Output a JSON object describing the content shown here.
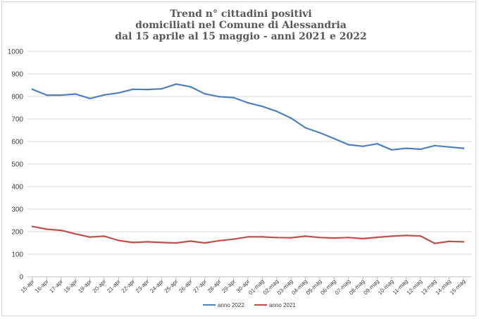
{
  "chart_data": {
    "type": "line",
    "title": [
      "Trend n° cittadini positivi",
      "domiciliati nel Comune di Alessandria",
      "dal 15 aprile al 15 maggio - anni 2021 e 2022"
    ],
    "xlabel": "",
    "ylabel": "",
    "ylim": [
      0,
      1000
    ],
    "yticks": [
      0,
      100,
      200,
      300,
      400,
      500,
      600,
      700,
      800,
      900,
      1000
    ],
    "grid": true,
    "legend_position": "bottom",
    "categories": [
      "15-apr",
      "16-apr",
      "17-apr",
      "18-apr",
      "19-apr",
      "20-apr",
      "21-apr",
      "22-apr",
      "23-apr",
      "24-apr",
      "25-apr",
      "26-apr",
      "27-apr",
      "28-apr",
      "29-apr",
      "30-apr",
      "01-mag",
      "02-mag",
      "03-mag",
      "04-mag",
      "05-mag",
      "06-mag",
      "07-mag",
      "08-mag",
      "09-mag",
      "10-mag",
      "11-mag",
      "12-mag",
      "13-mag",
      "14-mag",
      "15-mag"
    ],
    "series": [
      {
        "name": "anno 2022",
        "color": "#4f81bd",
        "values": [
          832,
          806,
          806,
          811,
          791,
          807,
          816,
          832,
          831,
          834,
          855,
          843,
          812,
          799,
          795,
          772,
          756,
          734,
          704,
          661,
          639,
          613,
          586,
          579,
          590,
          563,
          570,
          566,
          582,
          576,
          570
        ]
      },
      {
        "name": "anno 2021",
        "color": "#c0504d",
        "values": [
          223,
          211,
          206,
          190,
          176,
          180,
          161,
          152,
          155,
          152,
          150,
          158,
          150,
          160,
          167,
          177,
          177,
          174,
          173,
          180,
          174,
          172,
          174,
          169,
          175,
          180,
          183,
          181,
          148,
          157,
          155
        ]
      }
    ]
  }
}
